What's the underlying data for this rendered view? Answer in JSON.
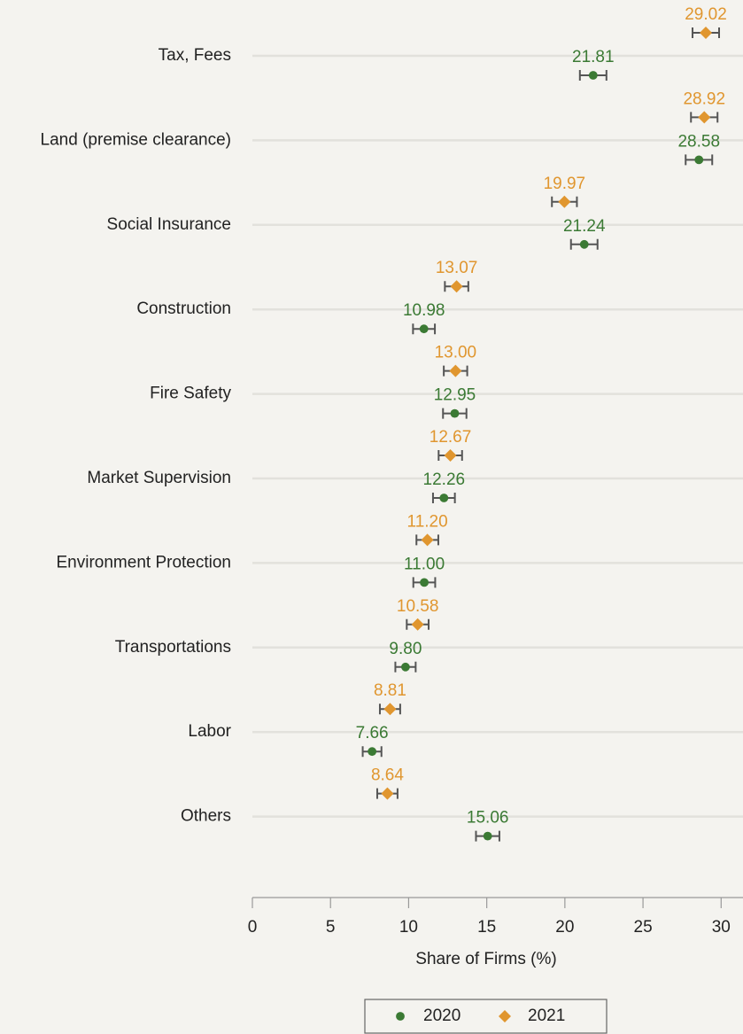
{
  "chart_data": {
    "type": "dotplot",
    "categories": [
      "Tax, Fees",
      "Land (premise clearance)",
      "Social Insurance",
      "Construction",
      "Fire Safety",
      "Market Supervision",
      "Environment Protection",
      "Transportations",
      "Labor",
      "Others"
    ],
    "series": [
      {
        "name": "2021",
        "color": "#e0962f",
        "marker": "diamond",
        "values": [
          29.02,
          28.92,
          19.97,
          13.07,
          13.0,
          12.67,
          11.2,
          10.58,
          8.81,
          8.64
        ],
        "value_labels": [
          "29.02",
          "28.92",
          "19.97",
          "13.07",
          "13.00",
          "12.67",
          "11.20",
          "10.58",
          "8.81",
          "8.64"
        ],
        "errors": [
          0.85,
          0.85,
          0.8,
          0.75,
          0.75,
          0.75,
          0.7,
          0.7,
          0.65,
          0.65
        ]
      },
      {
        "name": "2020",
        "color": "#3b7a34",
        "marker": "circle",
        "values": [
          21.81,
          28.58,
          21.24,
          10.98,
          12.95,
          12.26,
          11.0,
          9.8,
          7.66,
          15.06
        ],
        "value_labels": [
          "21.81",
          "28.58",
          "21.24",
          "10.98",
          "12.95",
          "12.26",
          "11.00",
          "9.80",
          "7.66",
          "15.06"
        ],
        "errors": [
          0.85,
          0.85,
          0.85,
          0.7,
          0.75,
          0.7,
          0.7,
          0.65,
          0.6,
          0.75
        ]
      }
    ],
    "x_label": "Share of Firms (%)",
    "xlim": [
      0,
      31.4
    ],
    "xticks": [
      0,
      5,
      10,
      15,
      20,
      25,
      30
    ],
    "grid": true
  }
}
